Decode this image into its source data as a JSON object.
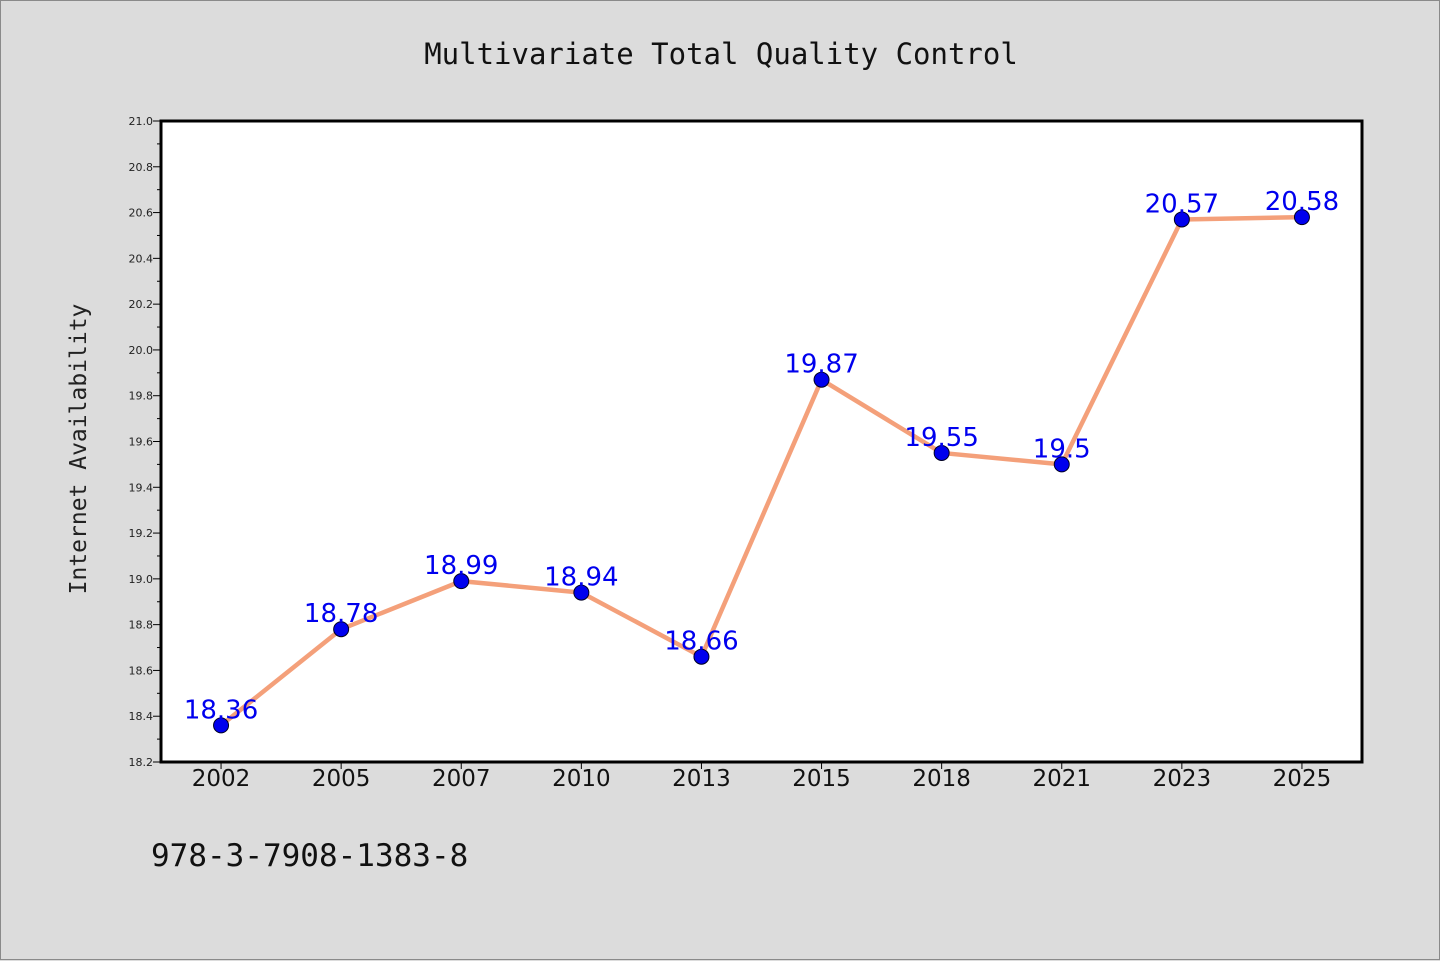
{
  "chart_data": {
    "type": "line",
    "title": "Multivariate Total Quality Control",
    "xlabel": "",
    "ylabel": "Internet Availability",
    "categories": [
      "2002",
      "2005",
      "2007",
      "2010",
      "2013",
      "2015",
      "2018",
      "2021",
      "2023",
      "2025"
    ],
    "series": [
      {
        "values": [
          18.36,
          18.78,
          18.99,
          18.94,
          18.66,
          19.87,
          19.55,
          19.5,
          20.57,
          20.58
        ],
        "line_color": "#f4a07a",
        "marker_color": "#0000ee"
      }
    ],
    "data_labels": [
      "18.36",
      "18.78",
      "18.99",
      "18.94",
      "18.66",
      "19.87",
      "19.55",
      "19.5",
      "20.57",
      "20.58"
    ],
    "ylim": [
      18.2,
      21.0
    ],
    "yticks": [
      "18.2",
      "18.4",
      "18.6",
      "18.8",
      "19.0",
      "19.2",
      "19.4",
      "19.6",
      "19.8",
      "20.0",
      "20.2",
      "20.4",
      "20.6",
      "20.8",
      "21.0"
    ],
    "grid": false,
    "label_color": "#0000ee"
  },
  "footer": {
    "isbn": "978-3-7908-1383-8"
  },
  "colors": {
    "background": "#dcdcdc",
    "plot_area": "#ffffff",
    "axes": "#000000"
  }
}
